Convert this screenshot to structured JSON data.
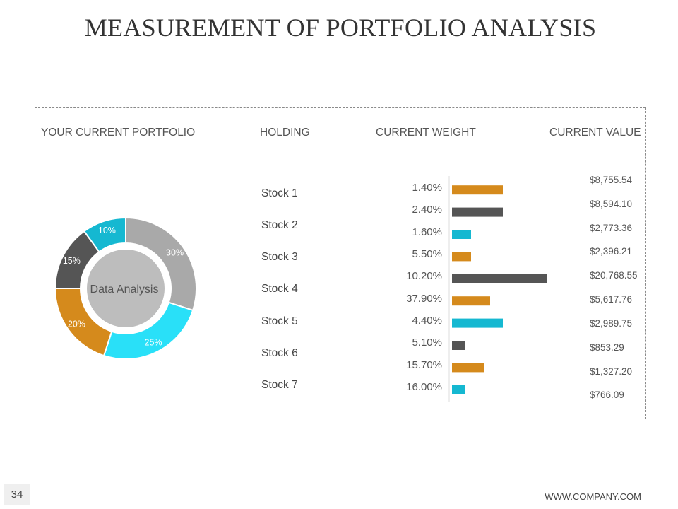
{
  "slide": {
    "title": "MEASUREMENT OF PORTFOLIO ANALYSIS",
    "page_number": "34",
    "footer_url": "WWW.COMPANY.COM"
  },
  "table": {
    "headers": [
      "YOUR CURRENT PORTFOLIO",
      "HOLDING",
      "CURRENT WEIGHT",
      "CURRENT VALUE"
    ],
    "stocks": [
      "Stock 1",
      "Stock 2",
      "Stock 3",
      "Stock 4",
      "Stock 5",
      "Stock 6",
      "Stock 7"
    ]
  },
  "colors": {
    "gray_light": "#a9a9a9",
    "cyan": "#29e0f8",
    "orange": "#d58a1c",
    "gray_dark": "#555555",
    "teal": "#15b8d1",
    "center": "#bdbdbd"
  },
  "chart_data": [
    {
      "type": "pie",
      "center_label": "Data Analysis",
      "slices": [
        {
          "label": "30%",
          "value": 30,
          "color": "#a9a9a9"
        },
        {
          "label": "25%",
          "value": 25,
          "color": "#29e0f8"
        },
        {
          "label": "20%",
          "value": 20,
          "color": "#d58a1c"
        },
        {
          "label": "15%",
          "value": 15,
          "color": "#555555"
        },
        {
          "label": "10%",
          "value": 10,
          "color": "#15b8d1"
        }
      ]
    },
    {
      "type": "bar",
      "orientation": "horizontal",
      "categories": [
        "1.40%",
        "2.40%",
        "1.60%",
        "5.50%",
        "10.20%",
        "37.90%",
        "4.40%",
        "5.10%",
        "15.70%",
        "16.00%"
      ],
      "values": [
        8,
        8,
        3,
        3,
        15,
        6,
        8,
        2,
        5,
        2
      ],
      "colors": [
        "#d58a1c",
        "#555555",
        "#15b8d1",
        "#d58a1c",
        "#555555",
        "#d58a1c",
        "#15b8d1",
        "#555555",
        "#d58a1c",
        "#15b8d1"
      ],
      "value_labels": [
        "$8,755.54",
        "$8,594.10",
        "$2,773.36",
        "$2,396.21",
        "$20,768.55",
        "$5,617.76",
        "$2,989.75",
        "$853.29",
        "$1,327.20",
        "$766.09"
      ]
    }
  ]
}
